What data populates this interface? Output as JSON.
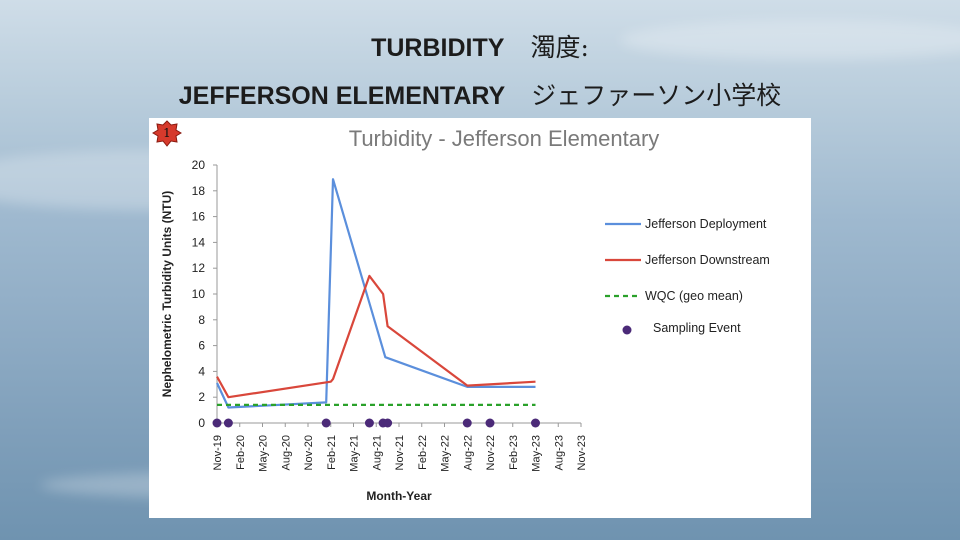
{
  "slide": {
    "title_line1": "TURBIDITY",
    "title_line1_jp": "濁度:",
    "title_line2": "JEFFERSON ELEMENTARY",
    "title_line2_jp": "ジェファーソン小学校",
    "badge_number": "1"
  },
  "chart_data": {
    "type": "line",
    "title": "Turbidity - Jefferson Elementary",
    "xlabel": "Month-Year",
    "ylabel": "Nephelometric Turbidity Units (NTU)",
    "ylim": [
      0,
      20
    ],
    "yticks": [
      0,
      2,
      4,
      6,
      8,
      10,
      12,
      14,
      16,
      18,
      20
    ],
    "categories": [
      "Nov-19",
      "Feb-20",
      "May-20",
      "Aug-20",
      "Nov-20",
      "Feb-21",
      "May-21",
      "Aug-21",
      "Nov-21",
      "Feb-22",
      "May-22",
      "Aug-22",
      "Nov-22",
      "Feb-23",
      "May-23",
      "Aug-23",
      "Nov-23"
    ],
    "grid": false,
    "legend_position": "right",
    "series": [
      {
        "name": "Jefferson Deployment",
        "color": "#5b8fdc",
        "style": "solid",
        "points": [
          [
            0,
            3.1
          ],
          [
            0.5,
            1.2
          ],
          [
            4.8,
            1.6
          ],
          [
            5.1,
            18.9
          ],
          [
            6.7,
            9.3
          ],
          [
            7.4,
            5.1
          ],
          [
            11.0,
            2.8
          ],
          [
            14.0,
            2.8
          ]
        ]
      },
      {
        "name": "Jefferson Downstream",
        "color": "#d9473b",
        "style": "solid",
        "points": [
          [
            0,
            3.6
          ],
          [
            0.5,
            2.0
          ],
          [
            5.0,
            3.2
          ],
          [
            5.1,
            3.4
          ],
          [
            6.7,
            11.4
          ],
          [
            7.3,
            10.0
          ],
          [
            7.5,
            7.5
          ],
          [
            11.0,
            2.9
          ],
          [
            14.0,
            3.2
          ]
        ]
      },
      {
        "name": "WQC (geo mean)",
        "color": "#2aa12a",
        "style": "dashed",
        "points": [
          [
            0,
            1.4
          ],
          [
            14.0,
            1.4
          ]
        ]
      }
    ],
    "sampling_events": {
      "name": "Sampling Event",
      "color": "#4b2a78",
      "x": [
        0.0,
        0.5,
        4.8,
        6.7,
        7.3,
        7.5,
        11.0,
        12.0,
        14.0
      ],
      "y": 0
    }
  }
}
